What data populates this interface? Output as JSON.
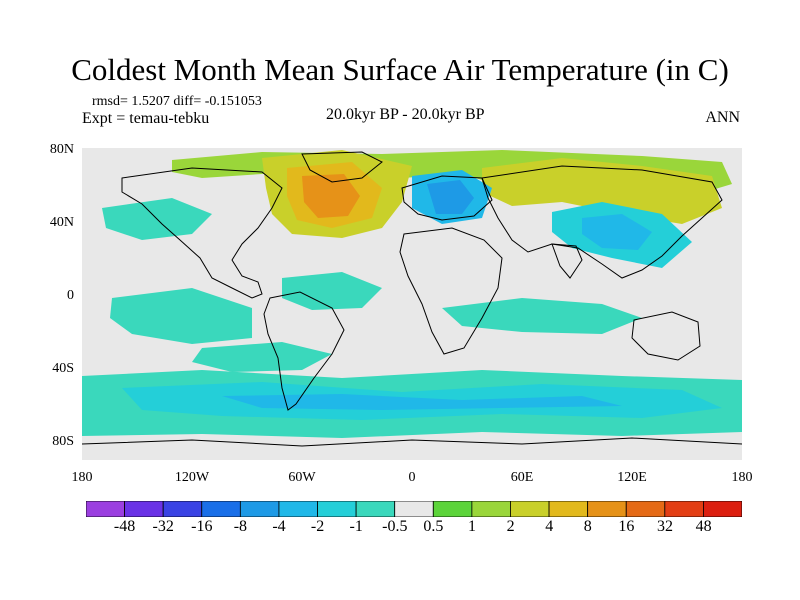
{
  "title": "Coldest Month Mean Surface Air Temperature (in C)",
  "stats": "rmsd= 1.5207 diff= -0.151053",
  "experiment": "Expt = temau-tebku",
  "period": "20.0kyr BP - 20.0kyr BP",
  "season": "ANN",
  "lat_labels": [
    "80N",
    "40N",
    "0",
    "40S",
    "80S"
  ],
  "lon_labels": [
    "180",
    "120W",
    "60W",
    "0",
    "60E",
    "120E",
    "180"
  ],
  "colorbar": {
    "labels": [
      "-48",
      "-32",
      "-16",
      "-8",
      "-4",
      "-2",
      "-1",
      "-0.5",
      "0.5",
      "1",
      "2",
      "4",
      "8",
      "16",
      "32",
      "48"
    ],
    "colors": [
      "#9b3fe0",
      "#6a32e6",
      "#3a43e4",
      "#1a6fe8",
      "#1e9ae6",
      "#20b8e8",
      "#24cfd8",
      "#3ad8bc",
      "#e8e8e8",
      "#5cd43a",
      "#9ad63a",
      "#c9d02a",
      "#e2b91c",
      "#e69218",
      "#e56a16",
      "#e33e14",
      "#dc1f10"
    ],
    "map_colors": {
      "zero": "#e8e8e8",
      "neg_small": "#3ad8bc",
      "neg_mid": "#24cfd8",
      "neg_large": "#20b8e8",
      "neg_xl": "#1e9ae6",
      "pos_small": "#9ad63a",
      "pos_mid": "#c9d02a",
      "pos_large": "#e2b91c",
      "pos_xl": "#e69218"
    }
  }
}
